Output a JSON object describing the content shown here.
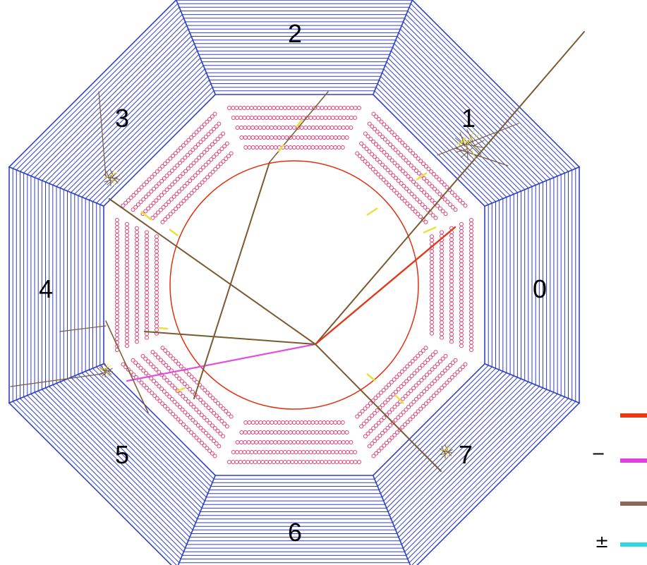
{
  "detector": {
    "segment_labels": [
      "0",
      "1",
      "2",
      "3",
      "4",
      "5",
      "6",
      "7"
    ],
    "colors": {
      "outer_module": "#3040c8",
      "inner_tube": "#e0407a",
      "inner_circle": "#e03010",
      "track_brown": "#7a5a30",
      "track_hit": "#e8e040"
    }
  },
  "legend": {
    "items": [
      {
        "symbol": "",
        "color": "#e83a10"
      },
      {
        "symbol": "−",
        "color": "#e040e0"
      },
      {
        "symbol": "",
        "color": "#8a6a52"
      },
      {
        "symbol": "±",
        "color": "#30d8e0"
      }
    ]
  }
}
